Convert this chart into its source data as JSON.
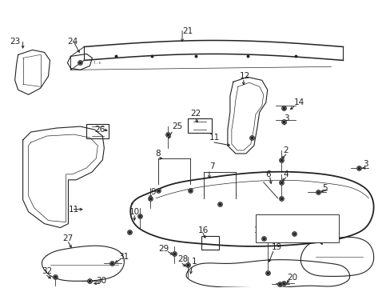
{
  "bg_color": "#ffffff",
  "line_color": "#222222",
  "fig_w": 4.89,
  "fig_h": 3.6,
  "dpi": 100
}
